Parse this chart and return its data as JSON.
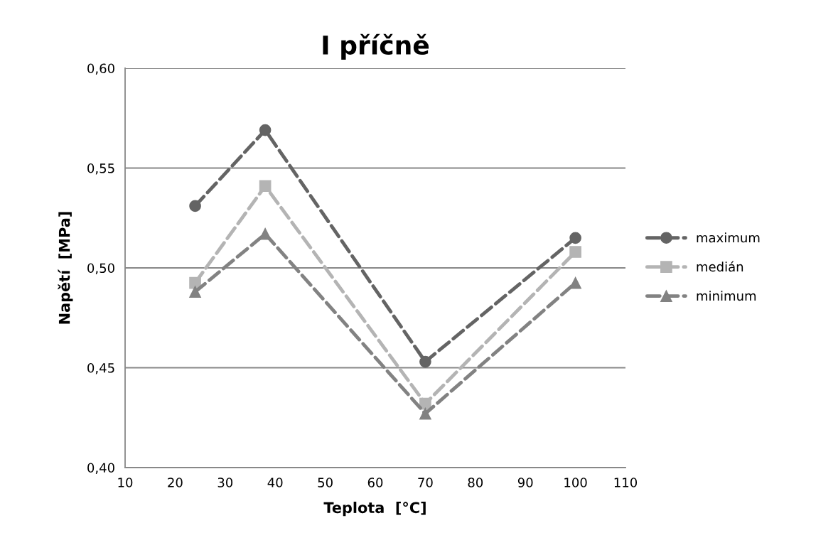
{
  "chart_data": {
    "type": "line",
    "title": "I příčně",
    "xlabel": "Teplota  [°C]",
    "ylabel": "Napětí  [MPa]",
    "x": [
      24,
      38,
      70,
      100
    ],
    "series": [
      {
        "name": "maximum",
        "color": "#646464",
        "marker": "circle",
        "values": [
          0.531,
          0.569,
          0.453,
          0.515
        ]
      },
      {
        "name": "medián",
        "color": "#b4b4b4",
        "marker": "square",
        "values": [
          0.4925,
          0.541,
          0.432,
          0.508
        ]
      },
      {
        "name": "minimum",
        "color": "#828282",
        "marker": "triangle",
        "values": [
          0.488,
          0.517,
          0.427,
          0.4925
        ]
      }
    ],
    "xlim": [
      10,
      110
    ],
    "xticks": [
      10,
      20,
      30,
      40,
      50,
      60,
      70,
      80,
      90,
      100,
      110
    ],
    "ylim": [
      0.4,
      0.6
    ],
    "yticks": [
      {
        "value": 0.4,
        "label": "0,40"
      },
      {
        "value": 0.45,
        "label": "0,45"
      },
      {
        "value": 0.5,
        "label": "0,50"
      },
      {
        "value": 0.55,
        "label": "0,55"
      },
      {
        "value": 0.6,
        "label": "0,60"
      }
    ],
    "grid": "y",
    "legend": "right",
    "line_style": "dashed"
  }
}
